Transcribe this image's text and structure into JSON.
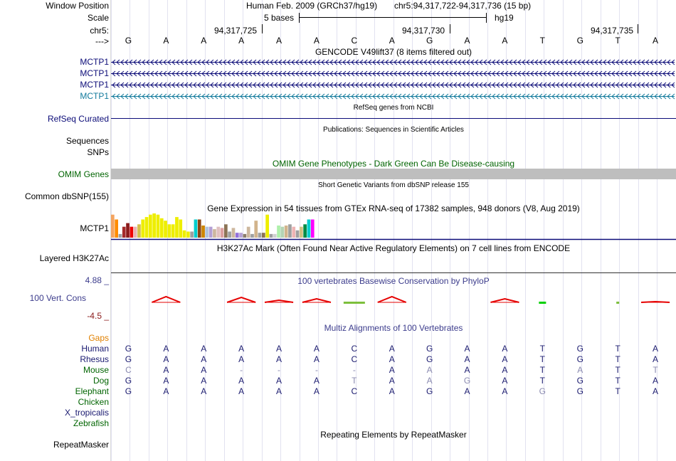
{
  "header": {
    "window_position_label": "Window Position",
    "assembly": "Human Feb. 2009 (GRCh37/hg19)",
    "position": "chr5:94,317,722-94,317,736 (15 bp)",
    "scale_label": "Scale",
    "scale_text": "5 bases",
    "scale_db": "hg19",
    "chrom_label": "chr5:",
    "coord_ticks": [
      "94,317,725",
      "94,317,730",
      "94,317,735"
    ],
    "strand_label": "--->"
  },
  "sequence": [
    "G",
    "A",
    "A",
    "A",
    "A",
    "A",
    "C",
    "A",
    "G",
    "A",
    "A",
    "T",
    "G",
    "T",
    "A"
  ],
  "tracks": {
    "gencode_title": "GENCODE V49lift37 (8 items filtered out)",
    "gencode_items": [
      "MCTP1",
      "MCTP1",
      "MCTP1",
      "MCTP1"
    ],
    "refseq_title": "RefSeq genes from NCBI",
    "refseq_label": "RefSeq Curated",
    "publications_title": "Publications: Sequences in Scientific Articles",
    "sequences_label": "Sequences",
    "snps_label": "SNPs",
    "omim_title": "OMIM Gene Phenotypes - Dark Green Can Be Disease-causing",
    "omim_label": "OMIM Genes",
    "dbsnp_title": "Short Genetic Variants from dbSNP release 155",
    "dbsnp_label": "Common dbSNP(155)",
    "gtex_title": "Gene Expression in 54 tissues from GTEx RNA-seq of 17382 samples, 948 donors (V8, Aug 2019)",
    "gtex_label": "MCTP1",
    "h3k27ac_title": "H3K27Ac Mark (Often Found Near Active Regulatory Elements) on 7 cell lines from ENCODE",
    "h3k27ac_label": "Layered H3K27Ac",
    "phylop_title": "100 vertebrates Basewise Conservation by PhyloP",
    "phylop_label": "100 Vert. Cons",
    "phylop_max": "4.88 _",
    "phylop_min": "-4.5 _",
    "gaps_label": "Gaps",
    "multiz_title": "Multiz Alignments of 100 Vertebrates",
    "repeat_title": "Repeating Elements by RepeatMasker",
    "repeat_label": "RepeatMasker"
  },
  "gtex_bars": [
    {
      "c": "#f4a460",
      "v": 0.95
    },
    {
      "c": "#ff8c00",
      "v": 0.75
    },
    {
      "c": "#a0a0a0",
      "v": 0.15
    },
    {
      "c": "#a52a2a",
      "v": 0.45
    },
    {
      "c": "#8b1a1a",
      "v": 0.6
    },
    {
      "c": "#ee0000",
      "v": 0.45
    },
    {
      "c": "#e8b4b4",
      "v": 0.45
    },
    {
      "c": "#d4c04a",
      "v": 0.55
    },
    {
      "c": "#eeee00",
      "v": 0.75
    },
    {
      "c": "#eeee00",
      "v": 0.85
    },
    {
      "c": "#eeee00",
      "v": 0.95
    },
    {
      "c": "#eeee00",
      "v": 1.0
    },
    {
      "c": "#eeee00",
      "v": 0.95
    },
    {
      "c": "#eeee00",
      "v": 0.8
    },
    {
      "c": "#eeee00",
      "v": 0.7
    },
    {
      "c": "#eeee00",
      "v": 0.55
    },
    {
      "c": "#eeee00",
      "v": 0.55
    },
    {
      "c": "#eeee00",
      "v": 0.85
    },
    {
      "c": "#eeee00",
      "v": 0.75
    },
    {
      "c": "#eeee00",
      "v": 0.3
    },
    {
      "c": "#eeee00",
      "v": 0.25
    },
    {
      "c": "#a0a0a0",
      "v": 0.25
    },
    {
      "c": "#00cdcd",
      "v": 0.75
    },
    {
      "c": "#8b4513",
      "v": 0.75
    },
    {
      "c": "#cd8500",
      "v": 0.5
    },
    {
      "c": "#b0c4de",
      "v": 0.45
    },
    {
      "c": "#b4a0d4",
      "v": 0.45
    },
    {
      "c": "#cdb79e",
      "v": 0.35
    },
    {
      "c": "#e0c0c0",
      "v": 0.45
    },
    {
      "c": "#dda0a0",
      "v": 0.4
    },
    {
      "c": "#8b7355",
      "v": 0.55
    },
    {
      "c": "#a0a0a0",
      "v": 0.25
    },
    {
      "c": "#cdb79e",
      "v": 0.4
    },
    {
      "c": "#9370db",
      "v": 0.2
    },
    {
      "c": "#b4a0d4",
      "v": 0.2
    },
    {
      "c": "#8b7d6b",
      "v": 0.15
    },
    {
      "c": "#cdb79e",
      "v": 0.45
    },
    {
      "c": "#a0a0a0",
      "v": 0.15
    },
    {
      "c": "#d2b48c",
      "v": 0.7
    },
    {
      "c": "#a0a0a0",
      "v": 0.2
    },
    {
      "c": "#8b7355",
      "v": 0.2
    },
    {
      "c": "#eeee00",
      "v": 0.95
    },
    {
      "c": "#a0a0a0",
      "v": 0.15
    },
    {
      "c": "#d0d0d0",
      "v": 0.15
    },
    {
      "c": "#aef0aa",
      "v": 0.5
    },
    {
      "c": "#b4d4b4",
      "v": 0.45
    },
    {
      "c": "#d2b48c",
      "v": 0.5
    },
    {
      "c": "#a0a0a0",
      "v": 0.55
    },
    {
      "c": "#eeb4b4",
      "v": 0.45
    },
    {
      "c": "#a0a0a0",
      "v": 0.3
    },
    {
      "c": "#d0c080",
      "v": 0.45
    },
    {
      "c": "#008b45",
      "v": 0.55
    },
    {
      "c": "#00cdcd",
      "v": 0.75
    },
    {
      "c": "#ff00ff",
      "v": 0.75
    }
  ],
  "species": [
    {
      "name": "Human",
      "color": "#191970",
      "bases": [
        "G",
        "A",
        "A",
        "A",
        "A",
        "A",
        "C",
        "A",
        "G",
        "A",
        "A",
        "T",
        "G",
        "T",
        "A"
      ],
      "faint": []
    },
    {
      "name": "Rhesus",
      "color": "#191970",
      "bases": [
        "G",
        "A",
        "A",
        "A",
        "A",
        "A",
        "C",
        "A",
        "G",
        "A",
        "A",
        "T",
        "G",
        "T",
        "A"
      ],
      "faint": []
    },
    {
      "name": "Mouse",
      "color": "#006400",
      "bases": [
        "C",
        "A",
        "A",
        "-",
        "-",
        "-",
        "-",
        "A",
        "A",
        "A",
        "A",
        "T",
        "A",
        "T",
        "T"
      ],
      "faint": [
        0,
        3,
        4,
        5,
        6,
        8,
        12,
        14
      ]
    },
    {
      "name": "Dog",
      "color": "#006400",
      "bases": [
        "G",
        "A",
        "A",
        "A",
        "A",
        "A",
        "T",
        "A",
        "A",
        "G",
        "A",
        "T",
        "G",
        "T",
        "A"
      ],
      "faint": [
        6,
        8,
        9
      ]
    },
    {
      "name": "Elephant",
      "color": "#006400",
      "bases": [
        "G",
        "A",
        "A",
        "A",
        "A",
        "A",
        "C",
        "A",
        "G",
        "A",
        "A",
        "G",
        "G",
        "T",
        "A"
      ],
      "faint": [
        11
      ]
    },
    {
      "name": "Chicken",
      "color": "#006400",
      "bases": [],
      "faint": []
    },
    {
      "name": "X_tropicalis",
      "color": "#191970",
      "bases": [],
      "faint": []
    },
    {
      "name": "Zebrafish",
      "color": "#006400",
      "bases": [],
      "faint": []
    }
  ],
  "colors": {
    "gene_navy": "#0c0c78",
    "gene_teal": "#127a9c",
    "omim_green": "#006400",
    "phylop_red": "#e60000",
    "phylop_blue": "#3c3c8c",
    "gaps_orange": "#e08000"
  }
}
